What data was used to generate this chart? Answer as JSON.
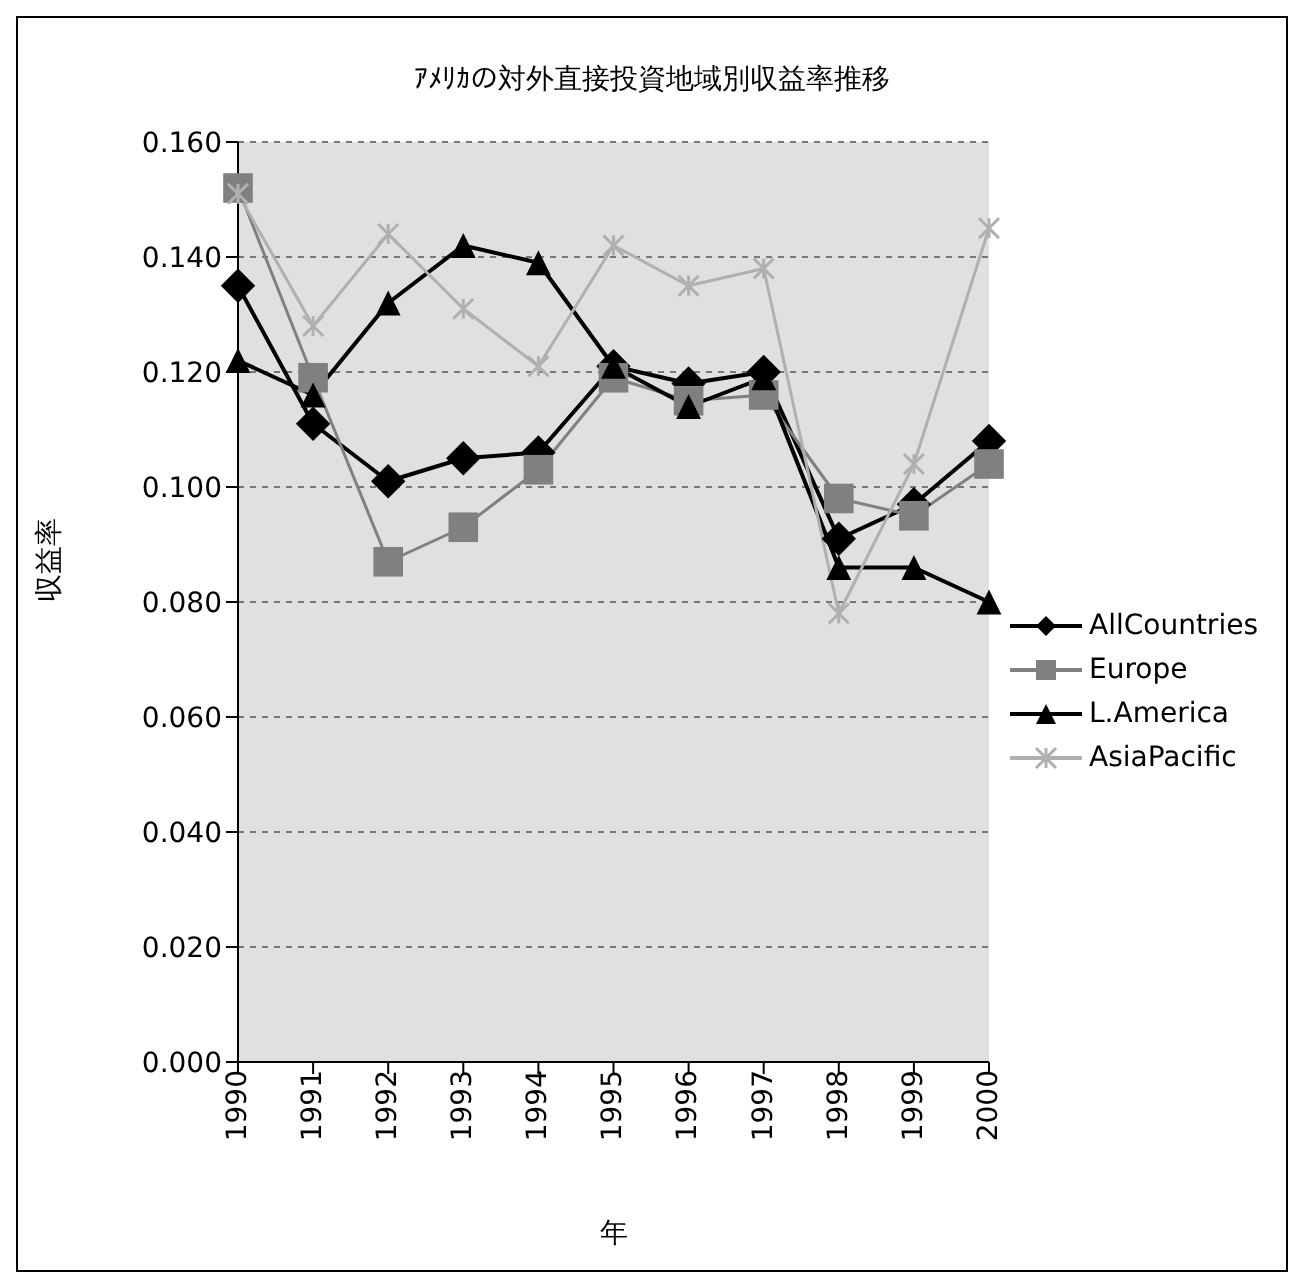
{
  "chart_data": {
    "type": "line",
    "title": "ｱﾒﾘｶの対外直接投資地域別収益率推移",
    "xlabel": "年",
    "ylabel": "収益率",
    "categories": [
      "1990",
      "1991",
      "1992",
      "1993",
      "1994",
      "1995",
      "1996",
      "1997",
      "1998",
      "1999",
      "2000"
    ],
    "series": [
      {
        "name": "AllCountries",
        "color": "#000000",
        "marker": "diamond",
        "values": [
          0.135,
          0.111,
          0.101,
          0.105,
          0.106,
          0.121,
          0.118,
          0.12,
          0.091,
          0.097,
          0.108
        ]
      },
      {
        "name": "Europe",
        "color": "#808080",
        "marker": "square",
        "values": [
          0.152,
          0.119,
          0.087,
          0.093,
          0.103,
          0.119,
          0.115,
          0.116,
          0.098,
          0.095,
          0.104
        ]
      },
      {
        "name": "L.America",
        "color": "#000000",
        "marker": "triangle",
        "values": [
          0.122,
          0.116,
          0.132,
          0.142,
          0.139,
          0.121,
          0.114,
          0.119,
          0.086,
          0.086,
          0.08
        ]
      },
      {
        "name": "AsiaPacific",
        "color": "#b0b0b0",
        "marker": "cross",
        "values": [
          0.151,
          0.128,
          0.144,
          0.131,
          0.121,
          0.142,
          0.135,
          0.138,
          0.078,
          0.104,
          0.145
        ]
      }
    ],
    "ylim": [
      0,
      0.16
    ],
    "yticks": [
      {
        "value": 0,
        "label": "0.000"
      },
      {
        "value": 0.02,
        "label": "0.020"
      },
      {
        "value": 0.04,
        "label": "0.040"
      },
      {
        "value": 0.06,
        "label": "0.060"
      },
      {
        "value": 0.08,
        "label": "0.080"
      },
      {
        "value": 0.1,
        "label": "0.100"
      },
      {
        "value": 0.12,
        "label": "0.120"
      },
      {
        "value": 0.14,
        "label": "0.140"
      },
      {
        "value": 0.16,
        "label": "0.160"
      }
    ],
    "grid": "y",
    "legend": "right"
  }
}
